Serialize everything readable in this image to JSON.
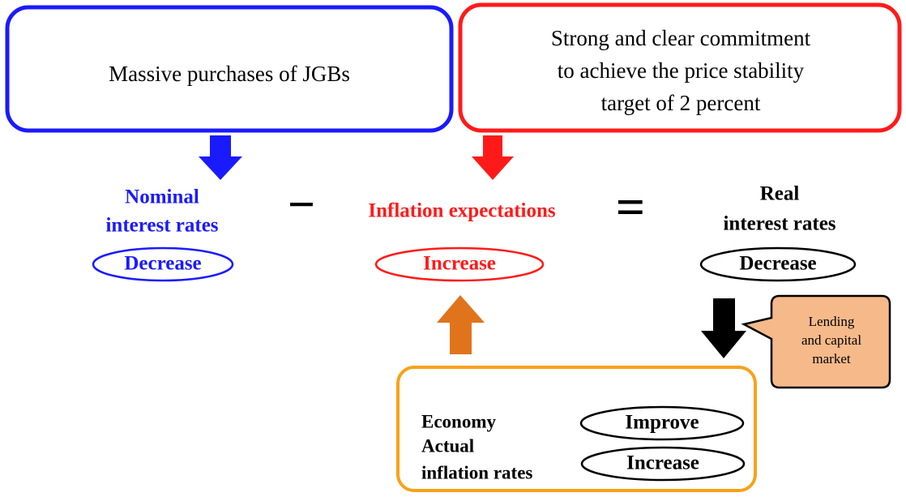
{
  "boxes": [
    {
      "lines": [
        "Massive purchases of JGBs"
      ]
    },
    {
      "lines": [
        "Strong and clear commitment",
        "to achieve the price stability",
        "target of 2 percent"
      ]
    }
  ],
  "equation": {
    "nominal": {
      "lines": [
        "Nominal",
        "interest rates"
      ],
      "change": "Decrease"
    },
    "minus": "−",
    "inflation": {
      "lines": [
        "Inflation expectations"
      ],
      "change": "Increase"
    },
    "equals": "=",
    "real": {
      "lines": [
        "Real",
        "interest rates"
      ],
      "change": "Decrease"
    }
  },
  "callout": {
    "lines": [
      "Lending",
      "and capital",
      "market"
    ]
  },
  "economy_box": {
    "rows": [
      {
        "lines": [
          "Economy"
        ],
        "change": "Improve"
      },
      {
        "lines": [
          "Actual",
          "inflation rates"
        ],
        "change": "Increase"
      }
    ]
  }
}
